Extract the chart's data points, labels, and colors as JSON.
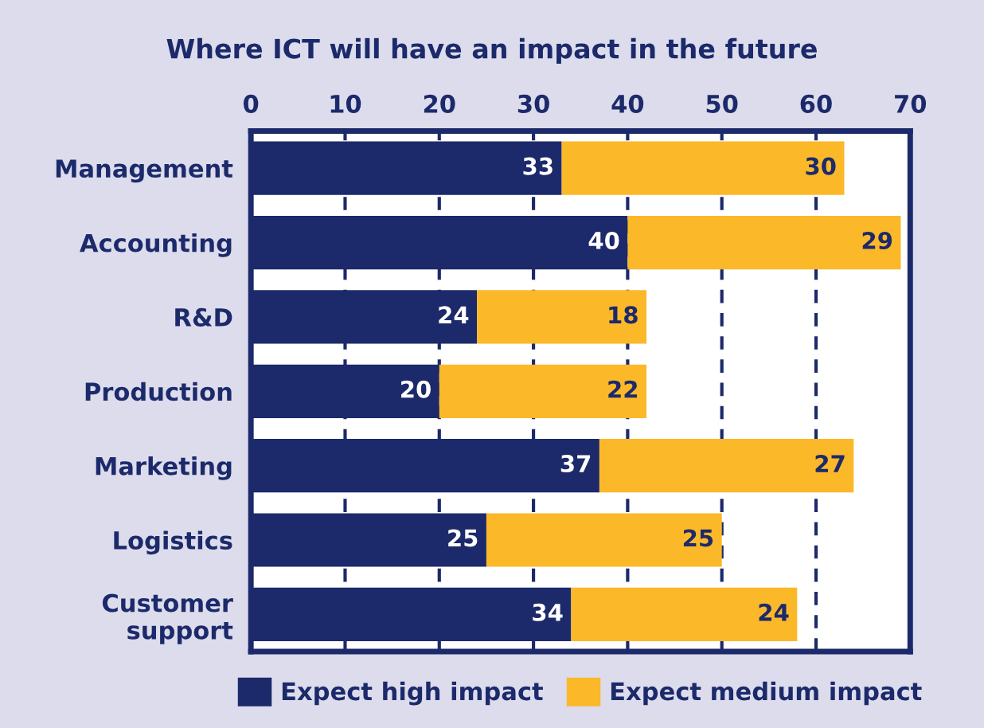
{
  "chart_data": {
    "type": "bar",
    "title": "Where ICT will have an impact in the future",
    "orientation": "horizontal",
    "stacked": true,
    "categories": [
      "Management",
      "Accounting",
      "R&D",
      "Production",
      "Marketing",
      "Logistics",
      "Customer\nsupport"
    ],
    "series": [
      {
        "name": "Expect high impact",
        "color": "#1c2a6b",
        "values": [
          33,
          40,
          24,
          20,
          37,
          25,
          34
        ]
      },
      {
        "name": "Expect medium impact",
        "color": "#fbb829",
        "values": [
          30,
          29,
          18,
          22,
          27,
          25,
          24
        ]
      }
    ],
    "xlim": [
      0,
      70
    ],
    "xticks": [
      0,
      10,
      20,
      30,
      40,
      50,
      60,
      70
    ],
    "grid": "x",
    "line_style": "dashed",
    "legend": "bottom",
    "data_labels": true
  }
}
